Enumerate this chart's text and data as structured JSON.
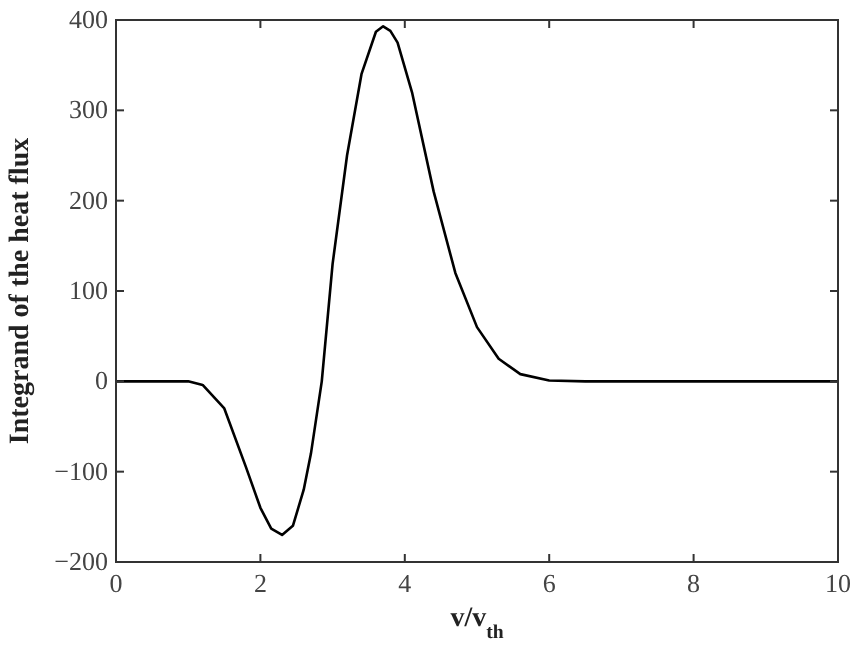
{
  "chart_data": {
    "type": "line",
    "xlabel": "v/v$_{th}$",
    "ylabel": "Integrand of the heat flux",
    "xlim": [
      0,
      10
    ],
    "ylim": [
      -200,
      400
    ],
    "xticks": [
      0,
      2,
      4,
      6,
      8,
      10
    ],
    "yticks": [
      {
        "value": -200,
        "label": "−200"
      },
      {
        "value": -100,
        "label": "−100"
      },
      0,
      100,
      200,
      300,
      400
    ],
    "grid": false,
    "marker": "none",
    "line_style": "solid",
    "series": [
      {
        "color": "#000000",
        "x": [
          0,
          0.5,
          1.0,
          1.2,
          1.5,
          1.8,
          2.0,
          2.15,
          2.3,
          2.45,
          2.6,
          2.7,
          2.85,
          3.0,
          3.2,
          3.4,
          3.6,
          3.7,
          3.8,
          3.9,
          4.1,
          4.4,
          4.7,
          5.0,
          5.3,
          5.6,
          6.0,
          6.5,
          8,
          10
        ],
        "values": [
          0,
          0,
          0,
          -4,
          -30,
          -95,
          -140,
          -163,
          -170,
          -160,
          -120,
          -80,
          0,
          130,
          250,
          340,
          387,
          393,
          388,
          375,
          320,
          210,
          120,
          60,
          25,
          8,
          1,
          0,
          0,
          0
        ]
      }
    ]
  }
}
